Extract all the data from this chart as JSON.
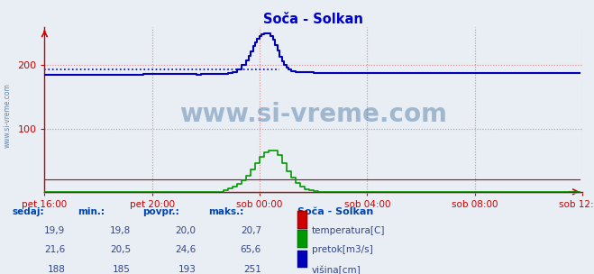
{
  "title": "Soča - Solkan",
  "title_color": "#0000cc",
  "bg_color": "#e8eef4",
  "plot_bg_color": "#e8eef4",
  "grid_color": "#dd8888",
  "xlim": [
    0,
    240
  ],
  "ylim": [
    0,
    260
  ],
  "yticks": [
    100,
    200
  ],
  "xtick_labels": [
    "pet 16:00",
    "pet 20:00",
    "sob 00:00",
    "sob 04:00",
    "sob 08:00",
    "sob 12:00"
  ],
  "xtick_positions": [
    0,
    48,
    96,
    144,
    192,
    240
  ],
  "temp_color": "#cc0000",
  "pretok_color": "#009900",
  "visina_color": "#0000bb",
  "watermark_text": "www.si-vreme.com",
  "watermark_color": "#336699",
  "watermark_alpha": 0.4,
  "legend_title": "Soča - Solkan",
  "legend_entries": [
    "temperatura[C]",
    "pretok[m3/s]",
    "višina[cm]"
  ],
  "legend_colors": [
    "#cc0000",
    "#009900",
    "#0000bb"
  ],
  "table_headers": [
    "sedaj:",
    "min.:",
    "povpr.:",
    "maks.:"
  ],
  "table_color": "#0044aa",
  "table_data": [
    [
      "19,9",
      "19,8",
      "20,0",
      "20,7"
    ],
    [
      "21,6",
      "20,5",
      "24,6",
      "65,6"
    ],
    [
      "188",
      "185",
      "193",
      "251"
    ]
  ],
  "visina_avg": 193,
  "temp_scale_max": 260
}
